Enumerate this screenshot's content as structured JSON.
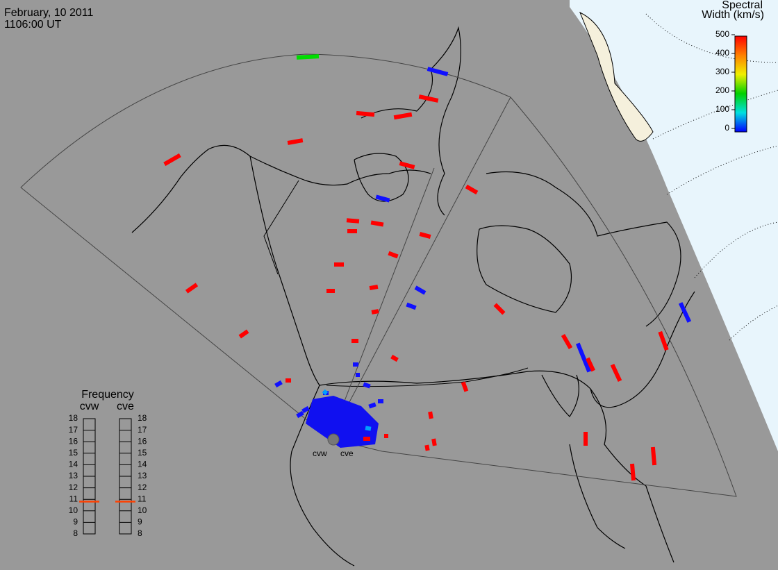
{
  "header": {
    "date": "February, 10 2011",
    "time": "1106:00 UT"
  },
  "colorbar": {
    "title": [
      "Spectral",
      "Width (km/s)"
    ],
    "range": [
      0,
      500
    ],
    "ticks": [
      0,
      100,
      200,
      300,
      400,
      500
    ]
  },
  "frequency": {
    "title": "Frequency",
    "range": [
      8,
      18
    ],
    "ticks": [
      8,
      9,
      10,
      11,
      12,
      13,
      14,
      15,
      16,
      17,
      18
    ],
    "radars": [
      {
        "name": "cvw",
        "value": 10.8
      },
      {
        "name": "cve",
        "value": 10.8
      }
    ]
  },
  "map": {
    "radar_labels": [
      "cvw",
      "cve"
    ]
  }
}
